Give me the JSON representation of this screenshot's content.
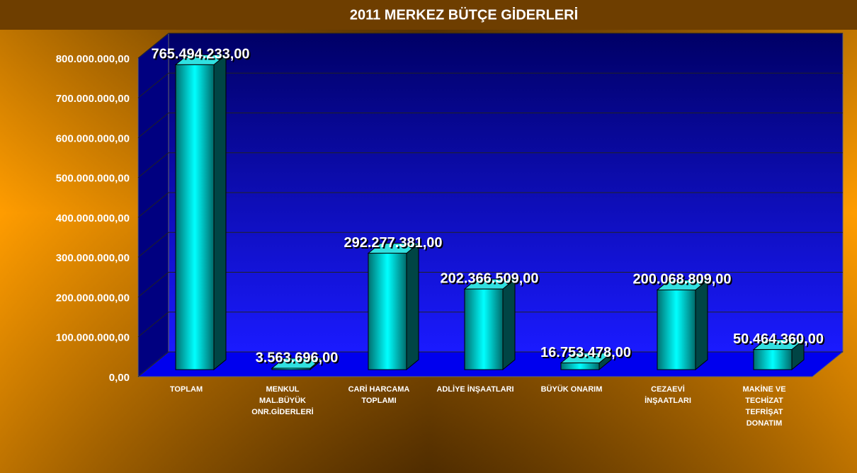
{
  "chart_data": {
    "type": "bar3d",
    "title": "2011 MERKEZ BÜTÇE GİDERLERİ",
    "categories": [
      "TOPLAM",
      "MENKUL\nMAL.BÜYÜK\nONR.GİDERLERİ",
      "CARİ HARCAMA\nTOPLAMI",
      "ADLİYE İNŞAATLARI",
      "BÜYÜK ONARIM",
      "CEZAEVİ\nİNŞAATLARI",
      "MAKİNE VE\nTECHİZAT\nTEFRİŞAT\nDONATIM"
    ],
    "values": [
      765494233,
      3563696,
      292277381,
      202366509,
      16753478,
      200068809,
      50464360
    ],
    "value_labels": [
      "765.494.233,00",
      "3.563.696,00",
      "292.277.381,00",
      "202.366.509,00",
      "16.753.478,00",
      "200.068.809,00",
      "50.464.360,00"
    ],
    "color": "#00c8c8",
    "ylim": [
      0,
      800000000
    ],
    "yticks": [
      {
        "value": 0,
        "label": "0,00"
      },
      {
        "value": 100000000,
        "label": "100.000.000,00"
      },
      {
        "value": 200000000,
        "label": "200.000.000,00"
      },
      {
        "value": 300000000,
        "label": "300.000.000,00"
      },
      {
        "value": 400000000,
        "label": "400.000.000,00"
      },
      {
        "value": 500000000,
        "label": "500.000.000,00"
      },
      {
        "value": 600000000,
        "label": "600.000.000,00"
      },
      {
        "value": 700000000,
        "label": "700.000.000,00"
      },
      {
        "value": 800000000,
        "label": "800.000.000,00"
      }
    ],
    "grid": true
  }
}
